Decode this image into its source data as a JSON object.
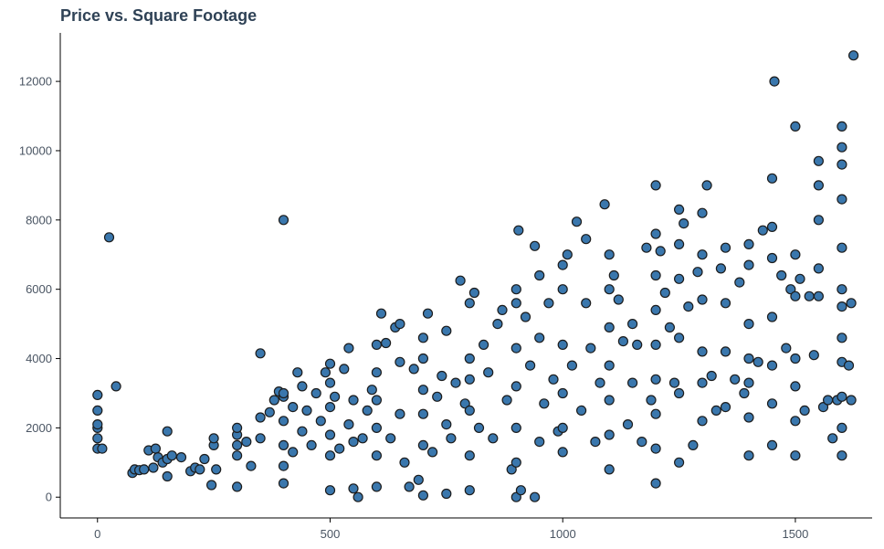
{
  "chart_data": {
    "type": "scatter",
    "title": "Price vs. Square Footage",
    "xlabel": "",
    "ylabel": "",
    "xlim": [
      -80,
      1665
    ],
    "ylim": [
      -600,
      13400
    ],
    "x_ticks": [
      0,
      500,
      1000,
      1500
    ],
    "y_ticks": [
      0,
      2000,
      4000,
      6000,
      8000,
      10000,
      12000
    ],
    "grid": false,
    "colors": {
      "marker_fill": "#3a77ad",
      "marker_edge": "#1c1c1c",
      "title": "#2f4256"
    },
    "points": [
      [
        0,
        1400
      ],
      [
        0,
        1700
      ],
      [
        0,
        2000
      ],
      [
        0,
        2100
      ],
      [
        0,
        2500
      ],
      [
        0,
        2950
      ],
      [
        10,
        1400
      ],
      [
        25,
        7500
      ],
      [
        40,
        3200
      ],
      [
        75,
        700
      ],
      [
        80,
        800
      ],
      [
        90,
        780
      ],
      [
        100,
        800
      ],
      [
        110,
        1350
      ],
      [
        120,
        850
      ],
      [
        125,
        1400
      ],
      [
        130,
        1150
      ],
      [
        140,
        1000
      ],
      [
        150,
        600
      ],
      [
        150,
        1100
      ],
      [
        150,
        1900
      ],
      [
        160,
        1200
      ],
      [
        180,
        1150
      ],
      [
        200,
        750
      ],
      [
        210,
        850
      ],
      [
        220,
        800
      ],
      [
        230,
        1100
      ],
      [
        245,
        350
      ],
      [
        250,
        1500
      ],
      [
        250,
        1700
      ],
      [
        255,
        800
      ],
      [
        300,
        300
      ],
      [
        300,
        1200
      ],
      [
        300,
        1500
      ],
      [
        300,
        1800
      ],
      [
        300,
        2000
      ],
      [
        320,
        1600
      ],
      [
        330,
        900
      ],
      [
        350,
        1700
      ],
      [
        350,
        2300
      ],
      [
        350,
        4150
      ],
      [
        370,
        2450
      ],
      [
        380,
        2800
      ],
      [
        390,
        3050
      ],
      [
        400,
        8000
      ],
      [
        400,
        400
      ],
      [
        400,
        900
      ],
      [
        400,
        1500
      ],
      [
        400,
        2200
      ],
      [
        400,
        2900
      ],
      [
        400,
        3000
      ],
      [
        420,
        1300
      ],
      [
        420,
        2600
      ],
      [
        430,
        3600
      ],
      [
        440,
        1900
      ],
      [
        440,
        3200
      ],
      [
        450,
        2500
      ],
      [
        460,
        1500
      ],
      [
        470,
        3000
      ],
      [
        480,
        2200
      ],
      [
        490,
        3600
      ],
      [
        500,
        1200
      ],
      [
        500,
        1800
      ],
      [
        500,
        2600
      ],
      [
        500,
        3300
      ],
      [
        500,
        3850
      ],
      [
        500,
        200
      ],
      [
        510,
        2900
      ],
      [
        520,
        1400
      ],
      [
        530,
        3700
      ],
      [
        540,
        4300
      ],
      [
        540,
        2100
      ],
      [
        550,
        250
      ],
      [
        550,
        1600
      ],
      [
        550,
        2800
      ],
      [
        560,
        0
      ],
      [
        570,
        1700
      ],
      [
        580,
        2500
      ],
      [
        590,
        3100
      ],
      [
        600,
        300
      ],
      [
        600,
        1200
      ],
      [
        600,
        2000
      ],
      [
        600,
        2800
      ],
      [
        600,
        3600
      ],
      [
        600,
        4400
      ],
      [
        610,
        5300
      ],
      [
        620,
        4450
      ],
      [
        630,
        1700
      ],
      [
        640,
        4900
      ],
      [
        650,
        5000
      ],
      [
        650,
        2400
      ],
      [
        650,
        3900
      ],
      [
        660,
        1000
      ],
      [
        670,
        300
      ],
      [
        680,
        3700
      ],
      [
        690,
        500
      ],
      [
        700,
        50
      ],
      [
        700,
        1500
      ],
      [
        700,
        2400
      ],
      [
        700,
        3100
      ],
      [
        700,
        4000
      ],
      [
        700,
        4600
      ],
      [
        710,
        5300
      ],
      [
        720,
        1300
      ],
      [
        730,
        2900
      ],
      [
        740,
        3500
      ],
      [
        750,
        100
      ],
      [
        750,
        2100
      ],
      [
        750,
        4800
      ],
      [
        760,
        1700
      ],
      [
        770,
        3300
      ],
      [
        780,
        6250
      ],
      [
        790,
        2700
      ],
      [
        800,
        200
      ],
      [
        800,
        1200
      ],
      [
        800,
        2500
      ],
      [
        800,
        3400
      ],
      [
        800,
        4000
      ],
      [
        800,
        5600
      ],
      [
        810,
        5900
      ],
      [
        820,
        2000
      ],
      [
        830,
        4400
      ],
      [
        840,
        3600
      ],
      [
        850,
        1700
      ],
      [
        860,
        5000
      ],
      [
        870,
        5400
      ],
      [
        880,
        2800
      ],
      [
        890,
        800
      ],
      [
        900,
        6000
      ],
      [
        900,
        5600
      ],
      [
        900,
        4300
      ],
      [
        900,
        3200
      ],
      [
        900,
        2000
      ],
      [
        900,
        1000
      ],
      [
        900,
        0
      ],
      [
        905,
        7700
      ],
      [
        910,
        200
      ],
      [
        920,
        5200
      ],
      [
        930,
        3800
      ],
      [
        940,
        0
      ],
      [
        940,
        7250
      ],
      [
        950,
        1600
      ],
      [
        950,
        4600
      ],
      [
        950,
        6400
      ],
      [
        960,
        2700
      ],
      [
        970,
        5600
      ],
      [
        980,
        3400
      ],
      [
        990,
        1900
      ],
      [
        1000,
        6000
      ],
      [
        1000,
        6700
      ],
      [
        1000,
        4400
      ],
      [
        1000,
        3000
      ],
      [
        1000,
        2000
      ],
      [
        1000,
        1300
      ],
      [
        1010,
        7000
      ],
      [
        1020,
        3800
      ],
      [
        1030,
        7950
      ],
      [
        1040,
        2500
      ],
      [
        1050,
        7450
      ],
      [
        1050,
        5600
      ],
      [
        1060,
        4300
      ],
      [
        1070,
        1600
      ],
      [
        1080,
        3300
      ],
      [
        1090,
        8450
      ],
      [
        1100,
        7000
      ],
      [
        1100,
        6000
      ],
      [
        1100,
        4900
      ],
      [
        1100,
        3800
      ],
      [
        1100,
        2800
      ],
      [
        1100,
        1800
      ],
      [
        1100,
        800
      ],
      [
        1110,
        6400
      ],
      [
        1120,
        5700
      ],
      [
        1130,
        4500
      ],
      [
        1140,
        2100
      ],
      [
        1150,
        5000
      ],
      [
        1150,
        3300
      ],
      [
        1160,
        4400
      ],
      [
        1170,
        1600
      ],
      [
        1180,
        7200
      ],
      [
        1190,
        2800
      ],
      [
        1200,
        9000
      ],
      [
        1200,
        7600
      ],
      [
        1200,
        6400
      ],
      [
        1200,
        5400
      ],
      [
        1200,
        4400
      ],
      [
        1200,
        3400
      ],
      [
        1200,
        2400
      ],
      [
        1200,
        1400
      ],
      [
        1200,
        400
      ],
      [
        1210,
        7100
      ],
      [
        1220,
        5900
      ],
      [
        1230,
        4900
      ],
      [
        1240,
        3300
      ],
      [
        1250,
        8300
      ],
      [
        1250,
        7300
      ],
      [
        1250,
        6300
      ],
      [
        1250,
        4600
      ],
      [
        1250,
        3000
      ],
      [
        1250,
        1000
      ],
      [
        1260,
        7900
      ],
      [
        1270,
        5500
      ],
      [
        1280,
        1500
      ],
      [
        1290,
        6500
      ],
      [
        1300,
        8200
      ],
      [
        1300,
        7000
      ],
      [
        1300,
        5700
      ],
      [
        1300,
        4200
      ],
      [
        1300,
        3300
      ],
      [
        1300,
        2200
      ],
      [
        1310,
        9000
      ],
      [
        1320,
        3500
      ],
      [
        1330,
        2500
      ],
      [
        1340,
        6600
      ],
      [
        1350,
        7200
      ],
      [
        1350,
        5600
      ],
      [
        1350,
        4200
      ],
      [
        1350,
        2600
      ],
      [
        1370,
        3400
      ],
      [
        1380,
        6200
      ],
      [
        1390,
        3000
      ],
      [
        1400,
        7300
      ],
      [
        1400,
        6700
      ],
      [
        1400,
        5000
      ],
      [
        1400,
        4000
      ],
      [
        1400,
        3300
      ],
      [
        1400,
        2300
      ],
      [
        1400,
        1200
      ],
      [
        1420,
        3900
      ],
      [
        1430,
        7700
      ],
      [
        1450,
        9200
      ],
      [
        1450,
        7800
      ],
      [
        1450,
        6900
      ],
      [
        1450,
        5200
      ],
      [
        1450,
        3800
      ],
      [
        1450,
        2700
      ],
      [
        1450,
        1500
      ],
      [
        1455,
        12000
      ],
      [
        1470,
        6400
      ],
      [
        1480,
        4300
      ],
      [
        1490,
        6000
      ],
      [
        1500,
        10700
      ],
      [
        1500,
        7000
      ],
      [
        1500,
        5800
      ],
      [
        1500,
        4000
      ],
      [
        1500,
        3200
      ],
      [
        1500,
        2200
      ],
      [
        1500,
        1200
      ],
      [
        1510,
        6300
      ],
      [
        1520,
        2500
      ],
      [
        1530,
        5800
      ],
      [
        1540,
        4100
      ],
      [
        1550,
        9700
      ],
      [
        1550,
        9000
      ],
      [
        1550,
        8000
      ],
      [
        1550,
        6600
      ],
      [
        1550,
        5800
      ],
      [
        1560,
        2600
      ],
      [
        1570,
        2800
      ],
      [
        1580,
        1700
      ],
      [
        1590,
        2800
      ],
      [
        1600,
        10700
      ],
      [
        1600,
        10100
      ],
      [
        1600,
        9600
      ],
      [
        1600,
        8600
      ],
      [
        1600,
        7200
      ],
      [
        1600,
        6000
      ],
      [
        1600,
        5500
      ],
      [
        1600,
        4600
      ],
      [
        1600,
        3900
      ],
      [
        1600,
        2900
      ],
      [
        1600,
        2000
      ],
      [
        1600,
        1200
      ],
      [
        1615,
        3800
      ],
      [
        1620,
        5600
      ],
      [
        1620,
        2800
      ],
      [
        1625,
        12750
      ]
    ]
  }
}
